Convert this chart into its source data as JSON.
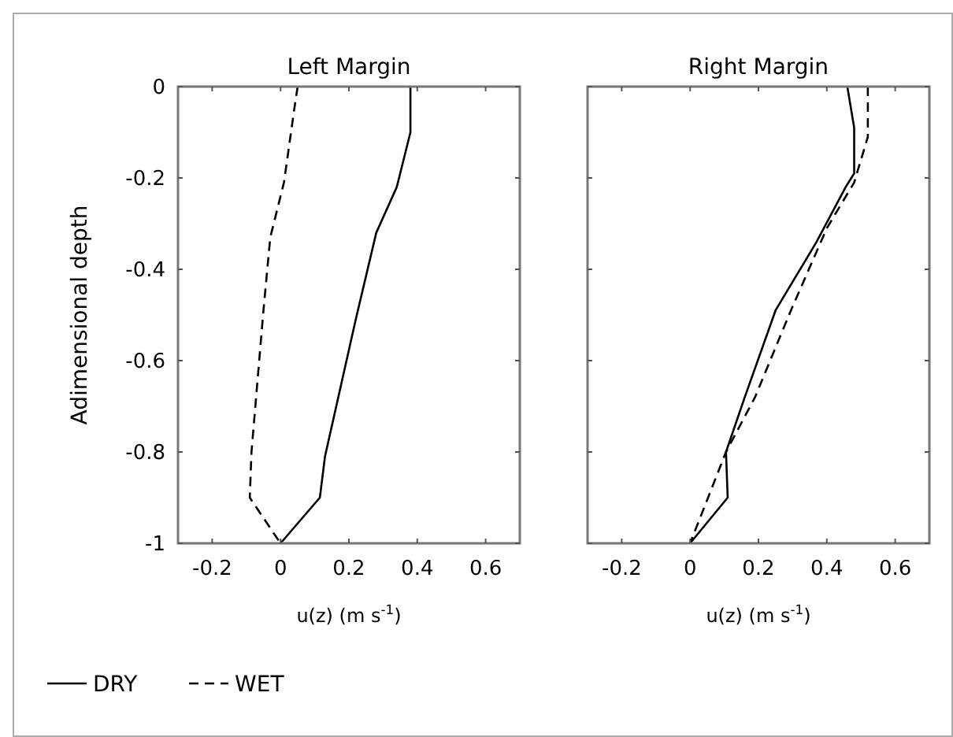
{
  "chart_data": [
    {
      "type": "line",
      "title": "Left Margin",
      "xlabel": "u(z) (m s$^{-1}$)",
      "ylabel": "Adimensional depth",
      "xlim": [
        -0.3,
        0.7
      ],
      "xticks": [
        -0.2,
        0,
        0.2,
        0.4,
        0.6
      ],
      "ylim": [
        -1,
        0
      ],
      "yticks": [
        0,
        -0.2,
        -0.4,
        -0.6,
        -0.8,
        -1
      ],
      "legend": "bottom",
      "grid": false,
      "series": [
        {
          "name": "DRY",
          "color": "#000000",
          "line_style": "solid",
          "x": [
            0.38,
            0.38,
            0.34,
            0.28,
            0.22,
            0.13,
            0.115,
            0
          ],
          "values": [
            0,
            -0.1,
            -0.22,
            -0.32,
            -0.51,
            -0.81,
            -0.9,
            -1
          ]
        },
        {
          "name": "WET",
          "color": "#000000",
          "line_style": "dashed",
          "x": [
            0.05,
            0.04,
            0.01,
            -0.03,
            -0.05,
            -0.085,
            -0.09,
            0
          ],
          "values": [
            0,
            -0.05,
            -0.21,
            -0.33,
            -0.49,
            -0.8,
            -0.9,
            -1
          ]
        }
      ]
    },
    {
      "type": "line",
      "title": "Right Margin",
      "xlabel": "u(z) (m s$^{-1}$)",
      "xlim": [
        -0.3,
        0.7
      ],
      "xticks": [
        -0.2,
        0,
        0.2,
        0.4,
        0.6
      ],
      "ylim": [
        -1,
        0
      ],
      "yticks": [
        0,
        -0.2,
        -0.4,
        -0.6,
        -0.8,
        -1
      ],
      "tick_labels": "x",
      "grid": false,
      "series": [
        {
          "color": "#000000",
          "line_style": "solid",
          "x": [
            0.46,
            0.48,
            0.48,
            0.455,
            0.37,
            0.25,
            0.16,
            0.105,
            0.11,
            0
          ],
          "values": [
            0,
            -0.09,
            -0.19,
            -0.22,
            -0.34,
            -0.49,
            -0.68,
            -0.8,
            -0.9,
            -1
          ]
        },
        {
          "color": "#000000",
          "line_style": "dashed",
          "x": [
            0.52,
            0.52,
            0.48,
            0.4,
            0.295,
            0.19,
            0.105,
            0
          ],
          "values": [
            0,
            -0.11,
            -0.21,
            -0.31,
            -0.49,
            -0.68,
            -0.8,
            -1
          ]
        }
      ]
    }
  ]
}
